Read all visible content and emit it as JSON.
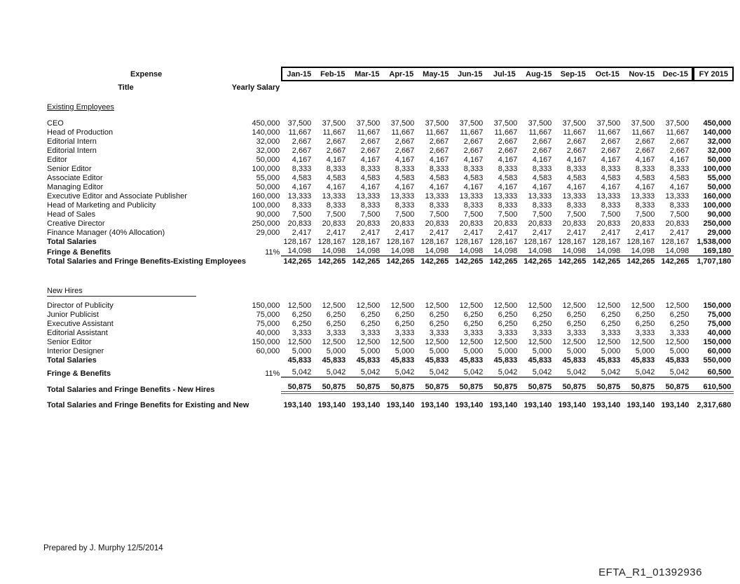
{
  "header": {
    "expense": "Expense",
    "title": "Title",
    "yearly_salary": "Yearly Salary",
    "months": [
      "Jan-15",
      "Feb-15",
      "Mar-15",
      "Apr-15",
      "May-15",
      "Jun-15",
      "Jul-15",
      "Aug-15",
      "Sep-15",
      "Oct-15",
      "Nov-15",
      "Dec-15"
    ],
    "fy": "FY 2015"
  },
  "table": {
    "sections": [
      {
        "heading": "Existing Employees",
        "rows": [
          {
            "type": "item",
            "label": "CEO",
            "yearly": "450,000",
            "monthly": "37,500",
            "fy": "450,000"
          },
          {
            "type": "item",
            "label": "Head of Production",
            "yearly": "140,000",
            "monthly": "11,667",
            "fy": "140,000"
          },
          {
            "type": "item",
            "label": "Editorial Intern",
            "yearly": "32,000",
            "monthly": "2,667",
            "fy": "32,000"
          },
          {
            "type": "item",
            "label": "Editorial Intern",
            "yearly": "32,000",
            "monthly": "2,667",
            "fy": "32,000"
          },
          {
            "type": "item",
            "label": "Editor",
            "yearly": "50,000",
            "monthly": "4,167",
            "fy": "50,000"
          },
          {
            "type": "item",
            "label": "Senior Editor",
            "yearly": "100,000",
            "monthly": "8,333",
            "fy": "100,000"
          },
          {
            "type": "item",
            "label": "Associate Editor",
            "yearly": "55,000",
            "monthly": "4,583",
            "fy": "55,000"
          },
          {
            "type": "item",
            "label": "Managing Editor",
            "yearly": "50,000",
            "monthly": "4,167",
            "fy": "50,000"
          },
          {
            "type": "item",
            "label": "Executive Editor and Associate Publisher",
            "yearly": "160,000",
            "monthly": "13,333",
            "fy": "160,000"
          },
          {
            "type": "item",
            "label": "Head of Marketing and Publicity",
            "yearly": "100,000",
            "monthly": "8,333",
            "fy": "100,000"
          },
          {
            "type": "item",
            "label": "Head of Sales",
            "yearly": "90,000",
            "monthly": "7,500",
            "fy": "90,000"
          },
          {
            "type": "item",
            "label": "Creative Director",
            "yearly": "250,000",
            "monthly": "20,833",
            "fy": "250,000"
          },
          {
            "type": "item",
            "label": "Finance Manager (40% Allocation)",
            "yearly": "29,000",
            "monthly": "2,417",
            "fy": "29,000"
          },
          {
            "type": "subtotal",
            "label": "Total Salaries",
            "yearly": "",
            "monthly": "128,167",
            "fy": "1,538,000"
          },
          {
            "type": "fringe",
            "label": "Fringe & Benefits",
            "yearly": "11%",
            "monthly": "14,098",
            "fy": "169,180"
          },
          {
            "type": "sectotal",
            "label": "Total Salaries and Fringe Benefits-Existing Employees",
            "yearly": "",
            "monthly": "142,265",
            "fy": "1,707,180"
          }
        ]
      },
      {
        "heading": "New Hires",
        "rows": [
          {
            "type": "item",
            "label": "Director of Publicity",
            "yearly": "150,000",
            "monthly": "12,500",
            "fy": "150,000"
          },
          {
            "type": "item",
            "label": "Junior Publicist",
            "yearly": "75,000",
            "monthly": "6,250",
            "fy": "75,000"
          },
          {
            "type": "item",
            "label": "Executive Assistant",
            "yearly": "75,000",
            "monthly": "6,250",
            "fy": "75,000"
          },
          {
            "type": "item",
            "label": "Editorial Assistant",
            "yearly": "40,000",
            "monthly": "3,333",
            "fy": "40,000"
          },
          {
            "type": "item",
            "label": "Senior Editor",
            "yearly": "150,000",
            "monthly": "12,500",
            "fy": "150,000"
          },
          {
            "type": "item",
            "label": "Interior Designer",
            "yearly": "60,000",
            "monthly": "5,000",
            "fy": "60,000"
          },
          {
            "type": "subtotal",
            "label": "Total Salaries",
            "yearly": "",
            "monthly": "45,833",
            "fy": "550,000"
          },
          {
            "type": "fringe",
            "label": "Fringe & Benefits",
            "yearly": "11%",
            "monthly": "5,042",
            "fy": "60,500"
          },
          {
            "type": "sectotal",
            "label": "Total Salaries and Fringe Benefits - New Hires",
            "yearly": "",
            "monthly": "50,875",
            "fy": "610,500"
          }
        ]
      }
    ],
    "grand_total": {
      "type": "grandtotal",
      "label": "Total Salaries and Fringe Benefits for Existing and New",
      "yearly": "",
      "monthly": "193,140",
      "fy": "2,317,680"
    }
  },
  "footer": {
    "prepared_by": "Prepared by J. Murphy 12/5/2014",
    "document_id": "EFTA_R1_01392936"
  }
}
